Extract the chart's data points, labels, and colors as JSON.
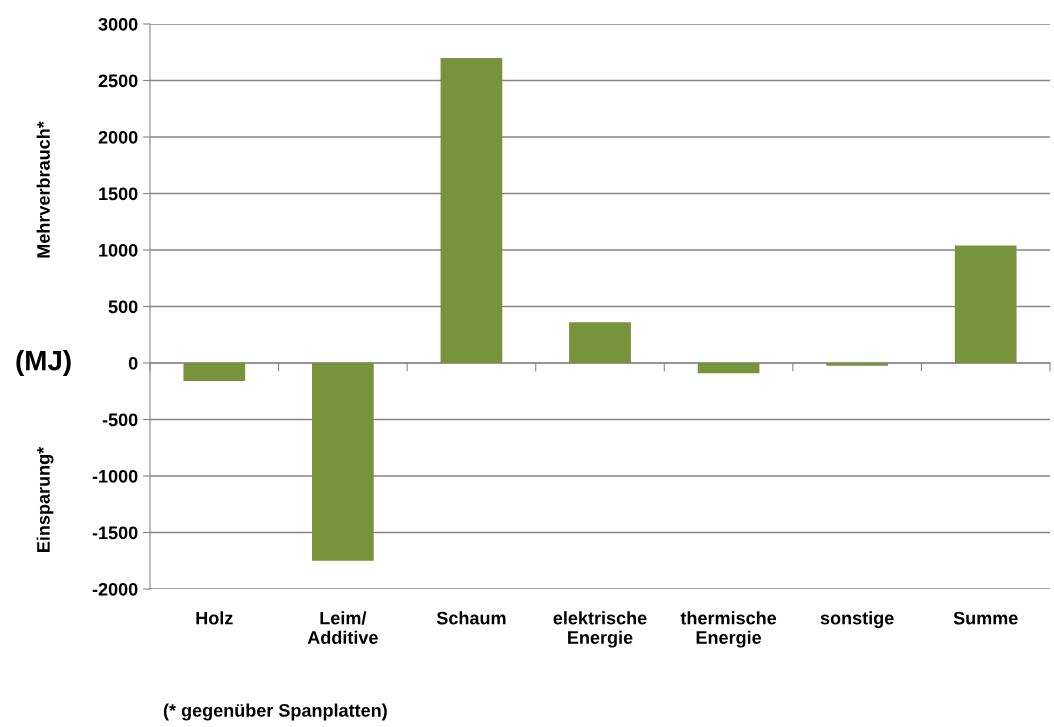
{
  "chart_data": {
    "type": "bar",
    "categories": [
      "Holz",
      "Leim/\nAdditive",
      "Schaum",
      "elektrische\nEnergie",
      "thermische\nEnergie",
      "sonstige",
      "Summe"
    ],
    "values": [
      -160,
      -1750,
      2700,
      360,
      -90,
      -25,
      1040
    ],
    "color": "#77933c",
    "ylabel": "(MJ)",
    "ylim": [
      -2000,
      3000
    ],
    "yticks": [
      -2000,
      -1500,
      -1000,
      -500,
      0,
      500,
      1000,
      1500,
      2000,
      2500,
      3000
    ],
    "grid": "y",
    "annotations": [
      "Mehrverbrauch*",
      "Einsparung*",
      "(* gegenüber Spanplatten)"
    ]
  }
}
